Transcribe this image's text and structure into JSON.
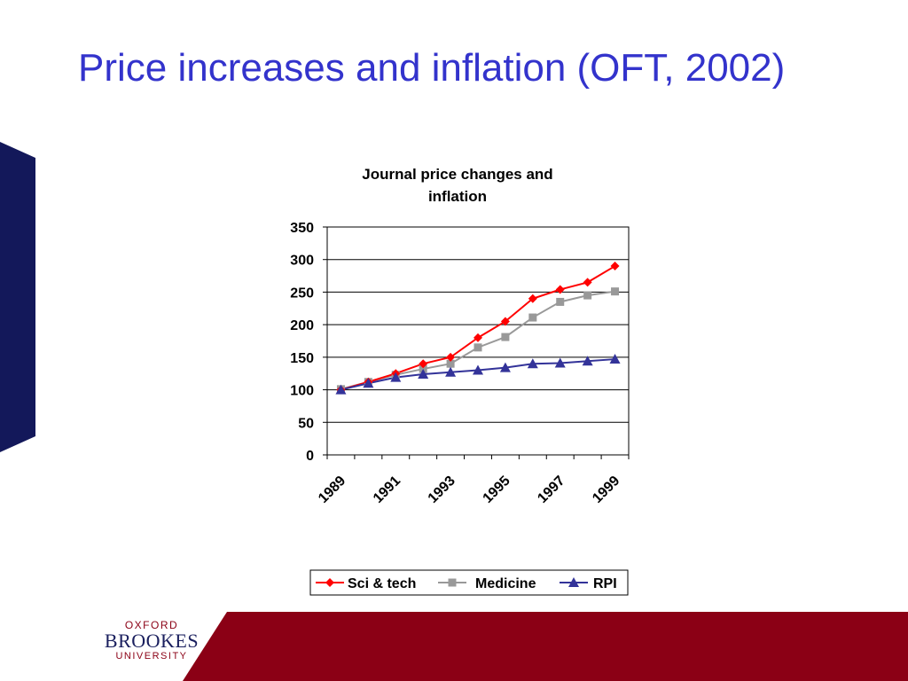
{
  "slide": {
    "title": "Price increases and inflation (OFT, 2002)"
  },
  "logo": {
    "line1": "OXFORD",
    "line2": "BROOKES",
    "line3": "UNIVERSITY"
  },
  "colors": {
    "title": "#3333cc",
    "side_tab": "#13185a",
    "band": "#8b0015"
  },
  "chart_data": {
    "type": "line",
    "title_lines": [
      "Journal price changes and",
      "inflation"
    ],
    "x": [
      "1989",
      "1990",
      "1991",
      "1992",
      "1993",
      "1994",
      "1995",
      "1996",
      "1997",
      "1998",
      "1999"
    ],
    "x_tick_labels": [
      "1989",
      "1991",
      "1993",
      "1995",
      "1997",
      "1999"
    ],
    "y_ticks": [
      "0",
      "50",
      "100",
      "150",
      "200",
      "250",
      "300",
      "350"
    ],
    "ylim": [
      0,
      350
    ],
    "grid": "horizontal",
    "legend_position": "bottom",
    "series": [
      {
        "name": "Sci & tech",
        "color": "#ff0000",
        "marker": "diamond",
        "values": [
          100,
          112,
          125,
          140,
          150,
          180,
          205,
          240,
          254,
          265,
          290
        ]
      },
      {
        "name": "Medicine",
        "color": "#999999",
        "marker": "square",
        "values": [
          101,
          112,
          123,
          132,
          140,
          165,
          181,
          211,
          235,
          245,
          251
        ]
      },
      {
        "name": "RPI",
        "color": "#333399",
        "marker": "triangle",
        "values": [
          100,
          110,
          119,
          124,
          127,
          130,
          134,
          140,
          141,
          144,
          147
        ]
      }
    ]
  }
}
